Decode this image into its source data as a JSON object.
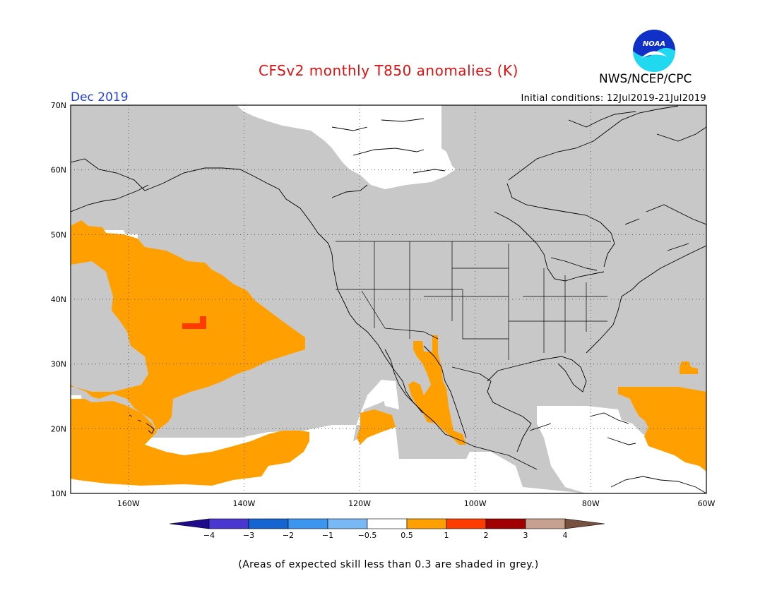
{
  "header": {
    "title": "CFSv2 monthly T850 anomalies (K)",
    "period": "Dec 2019",
    "organization": "NWS/NCEP/CPC",
    "logo_text": "NOAA",
    "initial_conditions": "Initial conditions: 12Jul2019-21Jul2019"
  },
  "map": {
    "lat_range": [
      10,
      70
    ],
    "lon_range": [
      -170,
      -60
    ],
    "lat_ticks": [
      "10N",
      "20N",
      "30N",
      "40N",
      "50N",
      "60N",
      "70N"
    ],
    "lon_ticks": [
      "160W",
      "140W",
      "120W",
      "100W",
      "80W",
      "60W"
    ],
    "low_skill_color": "#c8c8c8",
    "ocean_color": "#ffffff"
  },
  "colorbar": {
    "labels": [
      "−4",
      "−3",
      "−2",
      "−1",
      "−0.5",
      "0.5",
      "1",
      "2",
      "3",
      "4"
    ],
    "colors": [
      "#200a8c",
      "#4838d0",
      "#1464d2",
      "#3c96f0",
      "#78b8f4",
      "#ffffff",
      "#ffa000",
      "#ff3c00",
      "#a00000",
      "#c8a090",
      "#785040"
    ]
  },
  "footnote": "(Areas of expected skill less than 0.3 are shaded in grey.)"
}
